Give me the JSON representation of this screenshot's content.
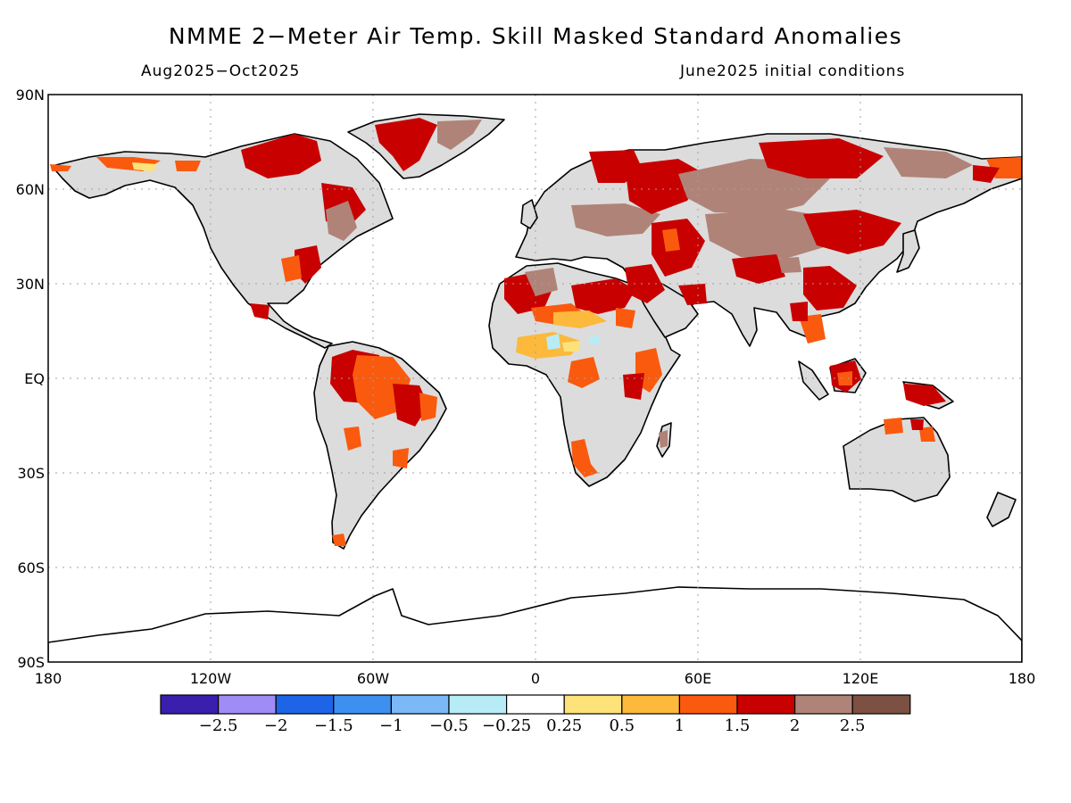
{
  "title": "NMME 2−Meter Air Temp. Skill Masked Standard Anomalies",
  "subtitle_left": "Aug2025−Oct2025",
  "subtitle_right": "June2025 initial conditions",
  "lat_labels": [
    "90N",
    "60N",
    "30N",
    "EQ",
    "30S",
    "60S",
    "90S"
  ],
  "lon_labels": [
    "180",
    "120W",
    "60W",
    "0",
    "60E",
    "120E",
    "180"
  ],
  "colorbar": {
    "colors": [
      "#3a1fae",
      "#9f8cf5",
      "#1e64e6",
      "#3d90ef",
      "#7ab8f6",
      "#b7ecf7",
      "#ffffff",
      "#fde27a",
      "#fcb93c",
      "#fa5a0e",
      "#c80000",
      "#b08378",
      "#7c5042"
    ],
    "labels": [
      "−2.5",
      "−2",
      "−1.5",
      "−1",
      "−0.5",
      "−0.25",
      "0.25",
      "0.5",
      "1",
      "1.5",
      "2",
      "2.5"
    ]
  },
  "colors": {
    "land_masked": "#dcdcdc",
    "ocean": "#ffffff",
    "coast": "#000000",
    "grid": "#a0a0a0"
  }
}
